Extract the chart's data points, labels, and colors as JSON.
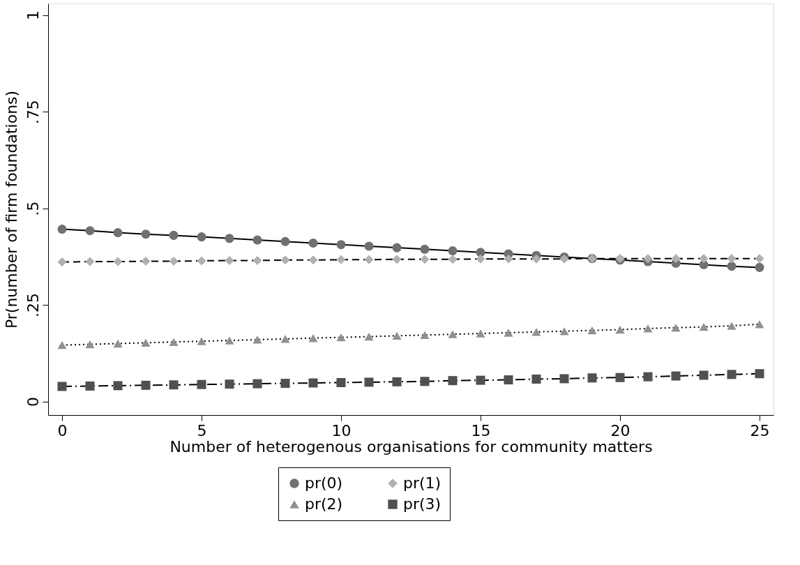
{
  "chart_data": {
    "type": "line",
    "xlabel": "Number of heterogenous organisations for community matters",
    "ylabel": "Pr(number of firm foundations)",
    "x": [
      0,
      1,
      2,
      3,
      4,
      5,
      6,
      7,
      8,
      9,
      10,
      11,
      12,
      13,
      14,
      15,
      16,
      17,
      18,
      19,
      20,
      21,
      22,
      23,
      24,
      25
    ],
    "xlim": [
      -0.5,
      25.5
    ],
    "xticks": [
      0,
      5,
      10,
      15,
      20,
      25
    ],
    "ylim": [
      -0.035,
      1.03
    ],
    "yticks": [
      0,
      {
        "value": 0.25,
        "label": ".25"
      },
      {
        "value": 0.5,
        "label": ".5"
      },
      {
        "value": 0.75,
        "label": ".75"
      },
      1
    ],
    "grid": false,
    "legend": "bottom",
    "series": [
      {
        "name": "pr(0)",
        "color": "#707070",
        "marker": "circle",
        "line_style": "solid",
        "values": [
          0.446,
          0.442,
          0.437,
          0.433,
          0.43,
          0.426,
          0.422,
          0.418,
          0.414,
          0.41,
          0.406,
          0.402,
          0.398,
          0.394,
          0.39,
          0.386,
          0.382,
          0.378,
          0.374,
          0.37,
          0.366,
          0.362,
          0.358,
          0.354,
          0.35,
          0.347
        ]
      },
      {
        "name": "pr(1)",
        "color": "#b0b0b0",
        "marker": "diamond",
        "line_style": "dashed",
        "values": [
          0.361,
          0.362,
          0.362,
          0.363,
          0.363,
          0.364,
          0.365,
          0.365,
          0.366,
          0.366,
          0.367,
          0.367,
          0.368,
          0.368,
          0.368,
          0.369,
          0.369,
          0.369,
          0.369,
          0.37,
          0.37,
          0.37,
          0.37,
          0.37,
          0.37,
          0.37
        ]
      },
      {
        "name": "pr(2)",
        "color": "#909090",
        "marker": "triangle",
        "line_style": "dotted",
        "values": [
          0.146,
          0.148,
          0.15,
          0.152,
          0.154,
          0.156,
          0.158,
          0.16,
          0.162,
          0.164,
          0.166,
          0.168,
          0.17,
          0.172,
          0.174,
          0.176,
          0.178,
          0.18,
          0.182,
          0.184,
          0.186,
          0.189,
          0.191,
          0.193,
          0.196,
          0.2
        ]
      },
      {
        "name": "pr(3)",
        "color": "#505050",
        "marker": "square",
        "line_style": "dashdot",
        "values": [
          0.039,
          0.04,
          0.041,
          0.042,
          0.043,
          0.044,
          0.045,
          0.046,
          0.047,
          0.048,
          0.049,
          0.05,
          0.051,
          0.052,
          0.054,
          0.055,
          0.056,
          0.058,
          0.059,
          0.061,
          0.062,
          0.064,
          0.066,
          0.068,
          0.07,
          0.072
        ]
      }
    ]
  }
}
